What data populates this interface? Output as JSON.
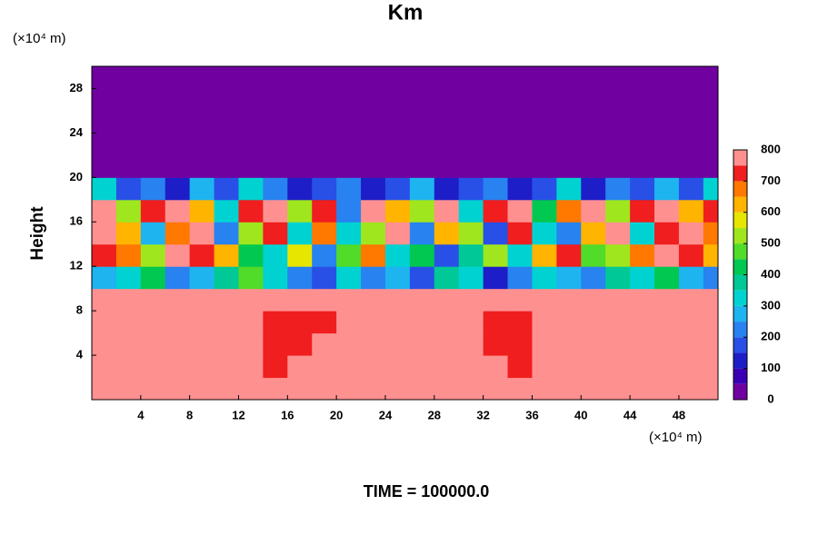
{
  "chart_data": {
    "type": "contour",
    "title": "Km",
    "y_label": "Height",
    "y_unit": "(×10⁴ m)",
    "x_unit": "(×10⁴ m)",
    "footer": "TIME = 100000.0",
    "xlim": [
      0,
      51.2
    ],
    "ylim": [
      0,
      30
    ],
    "xticks": [
      4,
      8,
      12,
      16,
      20,
      24,
      28,
      32,
      36,
      40,
      44,
      48
    ],
    "yticks": [
      4,
      8,
      12,
      16,
      20,
      24,
      28
    ],
    "x": [
      1,
      3,
      5,
      7,
      9,
      11,
      13,
      15,
      17,
      19,
      21,
      23,
      25,
      27,
      29,
      31,
      33,
      35,
      37,
      39,
      41,
      43,
      45,
      47,
      49,
      51
    ],
    "y": [
      1,
      3,
      5,
      7,
      9,
      11,
      13,
      15,
      17,
      19,
      21,
      23,
      25,
      27,
      29
    ],
    "z": [
      [
        760,
        780,
        780,
        780,
        780,
        780,
        780,
        780,
        780,
        780,
        780,
        780,
        780,
        780,
        780,
        780,
        780,
        780,
        780,
        780,
        780,
        780,
        780,
        780,
        780,
        780
      ],
      [
        780,
        780,
        780,
        780,
        780,
        780,
        780,
        720,
        760,
        780,
        780,
        780,
        780,
        780,
        780,
        780,
        780,
        700,
        780,
        780,
        780,
        780,
        780,
        780,
        780,
        780
      ],
      [
        780,
        780,
        780,
        780,
        780,
        780,
        780,
        720,
        700,
        780,
        780,
        780,
        780,
        780,
        780,
        780,
        720,
        700,
        780,
        780,
        760,
        780,
        780,
        780,
        780,
        780
      ],
      [
        780,
        780,
        780,
        780,
        780,
        780,
        780,
        740,
        720,
        720,
        780,
        780,
        780,
        780,
        780,
        780,
        700,
        740,
        780,
        780,
        780,
        780,
        780,
        780,
        780,
        780
      ],
      [
        780,
        780,
        780,
        780,
        780,
        780,
        780,
        780,
        780,
        780,
        780,
        780,
        780,
        780,
        780,
        780,
        780,
        780,
        780,
        780,
        780,
        780,
        780,
        780,
        780,
        780
      ],
      [
        250,
        300,
        400,
        200,
        250,
        350,
        450,
        300,
        200,
        150,
        300,
        200,
        250,
        150,
        350,
        300,
        100,
        200,
        300,
        250,
        200,
        350,
        300,
        400,
        250,
        200
      ],
      [
        700,
        650,
        500,
        780,
        700,
        600,
        400,
        300,
        550,
        200,
        450,
        650,
        300,
        400,
        150,
        350,
        500,
        300,
        600,
        700,
        450,
        500,
        650,
        780,
        700,
        600
      ],
      [
        780,
        600,
        250,
        650,
        780,
        200,
        500,
        700,
        300,
        650,
        300,
        500,
        780,
        200,
        600,
        500,
        150,
        700,
        300,
        200,
        600,
        780,
        300,
        700,
        780,
        650
      ],
      [
        750,
        500,
        700,
        780,
        600,
        300,
        700,
        780,
        500,
        700,
        200,
        780,
        600,
        500,
        780,
        300,
        700,
        780,
        400,
        650,
        780,
        500,
        700,
        780,
        600,
        700
      ],
      [
        300,
        150,
        200,
        100,
        250,
        150,
        300,
        200,
        100,
        150,
        200,
        100,
        150,
        250,
        100,
        150,
        200,
        100,
        150,
        300,
        100,
        200,
        150,
        250,
        150,
        300
      ],
      [
        0,
        0,
        0,
        0,
        0,
        0,
        0,
        0,
        0,
        0,
        0,
        0,
        0,
        0,
        0,
        0,
        0,
        0,
        0,
        0,
        0,
        0,
        0,
        0,
        0,
        0
      ],
      [
        0,
        0,
        0,
        0,
        0,
        0,
        0,
        0,
        0,
        0,
        0,
        0,
        0,
        0,
        0,
        0,
        0,
        0,
        0,
        0,
        0,
        0,
        0,
        0,
        0,
        0
      ],
      [
        0,
        0,
        0,
        0,
        0,
        0,
        0,
        0,
        0,
        0,
        0,
        0,
        0,
        0,
        0,
        0,
        0,
        0,
        0,
        0,
        0,
        0,
        0,
        0,
        0,
        0
      ],
      [
        0,
        0,
        0,
        0,
        0,
        0,
        0,
        0,
        0,
        0,
        0,
        0,
        0,
        0,
        0,
        0,
        0,
        0,
        0,
        0,
        0,
        0,
        0,
        0,
        0,
        0
      ],
      [
        0,
        0,
        0,
        0,
        0,
        0,
        0,
        0,
        0,
        0,
        0,
        0,
        0,
        0,
        0,
        0,
        0,
        0,
        0,
        0,
        0,
        0,
        0,
        0,
        0,
        0
      ]
    ],
    "colorbar_levels": [
      0,
      50,
      100,
      150,
      200,
      250,
      300,
      350,
      400,
      450,
      500,
      550,
      600,
      650,
      700,
      750,
      800
    ],
    "colors": [
      "#7000a0",
      "#3c00b4",
      "#1e1ec8",
      "#2850e6",
      "#2882f0",
      "#1eb4f0",
      "#00d2d2",
      "#00c896",
      "#00c850",
      "#50dc28",
      "#a0e61e",
      "#e6e600",
      "#ffb400",
      "#ff7800",
      "#f01e1e",
      "#ff9090"
    ],
    "colorbar_ticks": [
      0,
      100,
      200,
      300,
      400,
      500,
      600,
      700,
      800
    ]
  }
}
